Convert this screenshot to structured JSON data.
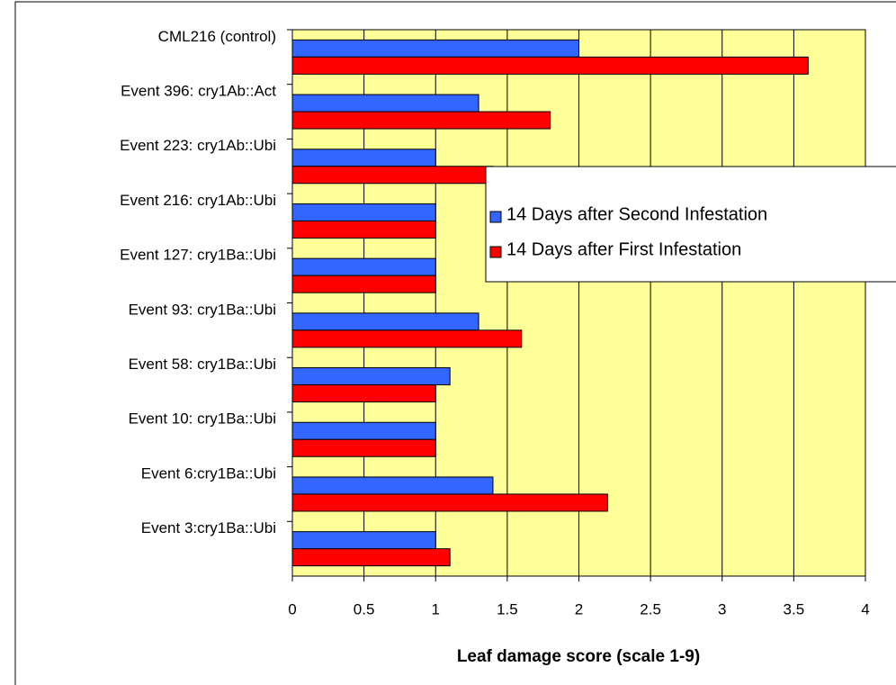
{
  "chart_data": {
    "type": "barh",
    "xlabel": "Leaf damage score (scale 1-9)",
    "categories": [
      "CML216 (control)",
      "Event 396: cry1Ab::Act",
      "Event 223: cry1Ab::Ubi",
      "Event 216: cry1Ab::Ubi",
      "Event 127: cry1Ba::Ubi",
      "Event 93: cry1Ba::Ubi",
      "Event 58: cry1Ba::Ubi",
      "Event 10: cry1Ba::Ubi",
      "Event 6:cry1Ba::Ubi",
      "Event 3:cry1Ba::Ubi"
    ],
    "series": [
      {
        "name": "14 Days after Second Infestation",
        "color": "#3366ff",
        "values": [
          2.0,
          1.3,
          1.0,
          1.0,
          1.0,
          1.3,
          1.1,
          1.0,
          1.4,
          1.0
        ]
      },
      {
        "name": "14 Days after First Infestation",
        "color": "#ff0000",
        "values": [
          3.6,
          1.8,
          1.4,
          1.0,
          1.0,
          1.6,
          1.0,
          1.0,
          2.2,
          1.1
        ]
      }
    ],
    "xlim": [
      0,
      4
    ],
    "xticks": [
      0,
      0.5,
      1,
      1.5,
      2,
      2.5,
      3,
      3.5,
      4
    ],
    "grid": true,
    "background": "#ffff99"
  }
}
